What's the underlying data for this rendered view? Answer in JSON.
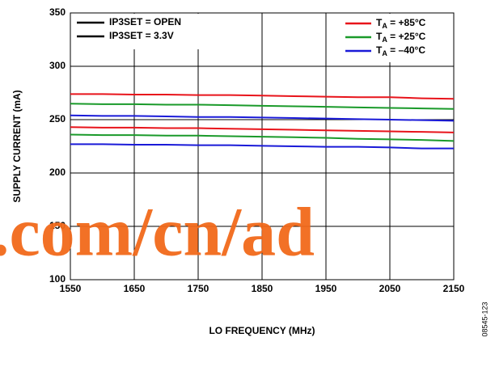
{
  "chart_data": {
    "type": "line",
    "xlabel": "LO FREQUENCY (MHz)",
    "ylabel": "SUPPLY CURRENT (mA)",
    "figure_id": "08545-123",
    "watermark": ".com/cn/ad",
    "x": [
      1550,
      1600,
      1650,
      1700,
      1750,
      1800,
      1850,
      1900,
      1950,
      2000,
      2050,
      2100,
      2150
    ],
    "xlim": [
      1550,
      2150
    ],
    "xticks": [
      1550,
      1650,
      1750,
      1850,
      1950,
      2050,
      2150
    ],
    "ylim": [
      100,
      350
    ],
    "yticks": [
      100,
      150,
      200,
      250,
      300,
      350
    ],
    "grid": true,
    "mode_legend": {
      "corner": "upper left",
      "entries": [
        "IP3SET = OPEN",
        "IP3SET = 3.3V"
      ],
      "color": "#000000"
    },
    "temperature_legend": {
      "corner": "upper right",
      "entries": [
        {
          "symbol": "T",
          "subscript": "A",
          "text": " = +85°C",
          "color": "#e8141b"
        },
        {
          "symbol": "T",
          "subscript": "A",
          "text": " = +25°C",
          "color": "#1a9a2a"
        },
        {
          "symbol": "T",
          "subscript": "A",
          "text": " = –40°C",
          "color": "#1a1ad8"
        }
      ]
    },
    "series": [
      {
        "color": "#e8141b",
        "values": [
          274,
          274,
          273.5,
          273.5,
          273,
          273,
          272.5,
          272,
          271.5,
          271,
          271,
          270,
          269.5
        ]
      },
      {
        "color": "#1a9a2a",
        "values": [
          265,
          264.5,
          264.5,
          264,
          264,
          263.5,
          263,
          262.5,
          262,
          261.5,
          261,
          260.5,
          260
        ]
      },
      {
        "color": "#1a1ad8",
        "values": [
          254,
          253.5,
          253.5,
          253,
          252.5,
          252.5,
          252,
          251.5,
          251,
          250.5,
          250,
          249.5,
          249
        ]
      },
      {
        "color": "#e8141b",
        "values": [
          243,
          242.5,
          242.5,
          242,
          242,
          241.5,
          241,
          240.5,
          240,
          239.5,
          239,
          238.5,
          238
        ]
      },
      {
        "color": "#1a9a2a",
        "values": [
          236,
          235.5,
          235.5,
          235,
          235,
          234.5,
          234,
          233.5,
          233,
          232,
          231.5,
          231,
          230
        ]
      },
      {
        "color": "#1a1ad8",
        "values": [
          227,
          227,
          226.5,
          226.5,
          226,
          226,
          225.5,
          225,
          224.5,
          224.5,
          224,
          223,
          223
        ]
      }
    ]
  }
}
